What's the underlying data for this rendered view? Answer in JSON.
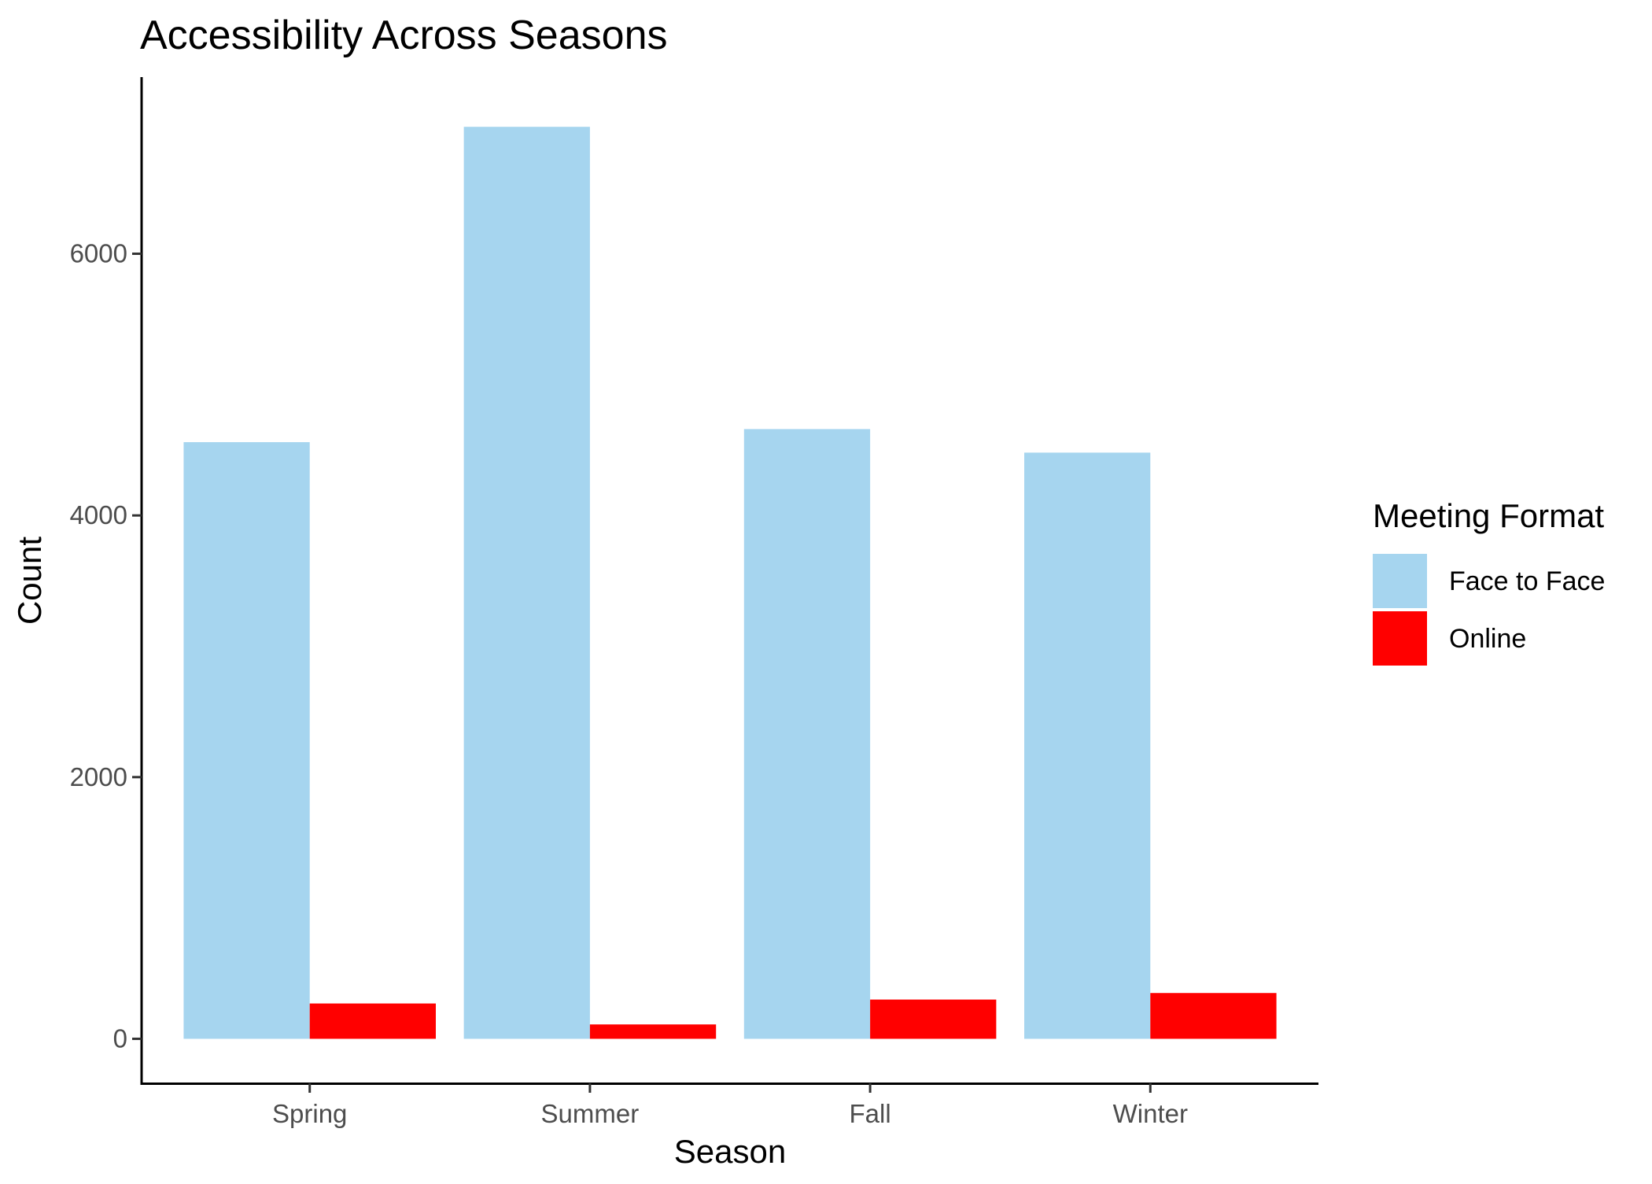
{
  "chart_data": {
    "type": "bar",
    "title": "Accessibility Across Seasons",
    "xlabel": "Season",
    "ylabel": "Count",
    "categories": [
      "Spring",
      "Summer",
      "Fall",
      "Winter"
    ],
    "series": [
      {
        "name": "Face to Face",
        "color": "#A6D5EF",
        "values": [
          4560,
          6970,
          4660,
          4480
        ]
      },
      {
        "name": "Online",
        "color": "#FF0000",
        "values": [
          270,
          110,
          300,
          350
        ]
      }
    ],
    "ylim": [
      -340,
      7350
    ],
    "yticks": [
      0,
      2000,
      4000,
      6000
    ],
    "legend": {
      "title": "Meeting Format",
      "position": "right"
    },
    "grid": false
  }
}
